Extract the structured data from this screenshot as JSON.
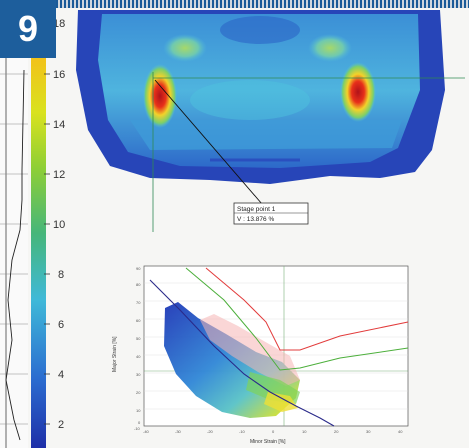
{
  "figure_number": "9",
  "colorbar": {
    "ticks": [
      "18",
      "16",
      "14",
      "12",
      "10",
      "8",
      "6",
      "4",
      "2"
    ]
  },
  "callout": {
    "title": "Stage point 1",
    "value": "V : 13.876 %"
  },
  "fld_plot": {
    "xlabel": "Minor Strain [%]",
    "ylabel": "Major Strain [%]",
    "x_ticks": [
      "-40",
      "-30",
      "-20",
      "-10",
      "0",
      "10",
      "20",
      "30",
      "40"
    ],
    "y_ticks": [
      "90",
      "80",
      "70",
      "60",
      "50",
      "40",
      "30",
      "20",
      "10",
      "0",
      "-10"
    ]
  },
  "colors": {
    "badge": "#1d5e9c",
    "hot": "#d8141b",
    "cold": "#1d3fb4"
  }
}
